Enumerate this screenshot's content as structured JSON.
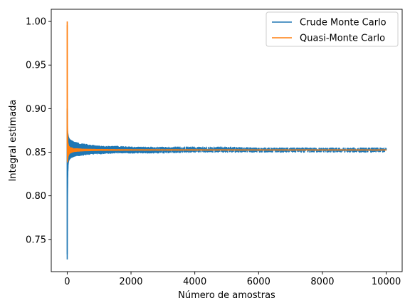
{
  "chart_data": {
    "type": "line",
    "title": "",
    "xlabel": "Número de amostras",
    "ylabel": "Integral estimada",
    "xlim": [
      -500,
      10500
    ],
    "ylim": [
      0.713,
      1.014
    ],
    "xticks": [
      0,
      2000,
      4000,
      6000,
      8000,
      10000
    ],
    "xtick_labels": [
      "0",
      "2000",
      "4000",
      "6000",
      "8000",
      "10000"
    ],
    "yticks": [
      0.75,
      0.8,
      0.85,
      0.9,
      0.95,
      1.0
    ],
    "ytick_labels": [
      "0.75",
      "0.80",
      "0.85",
      "0.90",
      "0.95",
      "1.00"
    ],
    "grid": false,
    "legend_position": "top-right",
    "true_value": 0.8526,
    "series": [
      {
        "name": "Crude Monte Carlo",
        "color": "#1f77b4",
        "x": [
          1,
          5,
          10,
          20,
          30,
          40,
          50,
          60,
          80,
          100,
          150,
          200,
          300,
          400,
          600,
          800,
          1000,
          1500,
          2000,
          3000,
          4000,
          5000,
          6000,
          7000,
          8000,
          9000,
          10000
        ],
        "upper": [
          0.9,
          0.88,
          0.875,
          0.872,
          0.87,
          0.868,
          0.867,
          0.866,
          0.865,
          0.864,
          0.863,
          0.862,
          0.861,
          0.86,
          0.859,
          0.858,
          0.857,
          0.857,
          0.856,
          0.856,
          0.856,
          0.856,
          0.855,
          0.855,
          0.855,
          0.855,
          0.855
        ],
        "lower": [
          0.727,
          0.78,
          0.8,
          0.825,
          0.835,
          0.838,
          0.84,
          0.841,
          0.842,
          0.843,
          0.844,
          0.845,
          0.846,
          0.846,
          0.847,
          0.848,
          0.848,
          0.849,
          0.849,
          0.849,
          0.85,
          0.85,
          0.85,
          0.85,
          0.85,
          0.85,
          0.85
        ]
      },
      {
        "name": "Quasi-Monte Carlo",
        "color": "#ff7f0e",
        "x": [
          1,
          2,
          5,
          10,
          20,
          30,
          50,
          80,
          100,
          150,
          200,
          300,
          500,
          1000,
          2000,
          4000,
          6000,
          8000,
          10000
        ],
        "upper": [
          1.0,
          0.95,
          0.9,
          0.88,
          0.862,
          0.86,
          0.857,
          0.856,
          0.855,
          0.855,
          0.854,
          0.854,
          0.8535,
          0.8532,
          0.853,
          0.8529,
          0.8528,
          0.8528,
          0.8528
        ],
        "lower": [
          0.86,
          0.855,
          0.84,
          0.838,
          0.842,
          0.845,
          0.847,
          0.849,
          0.849,
          0.85,
          0.8505,
          0.851,
          0.8515,
          0.852,
          0.8522,
          0.8523,
          0.8524,
          0.8524,
          0.8524
        ]
      }
    ]
  }
}
